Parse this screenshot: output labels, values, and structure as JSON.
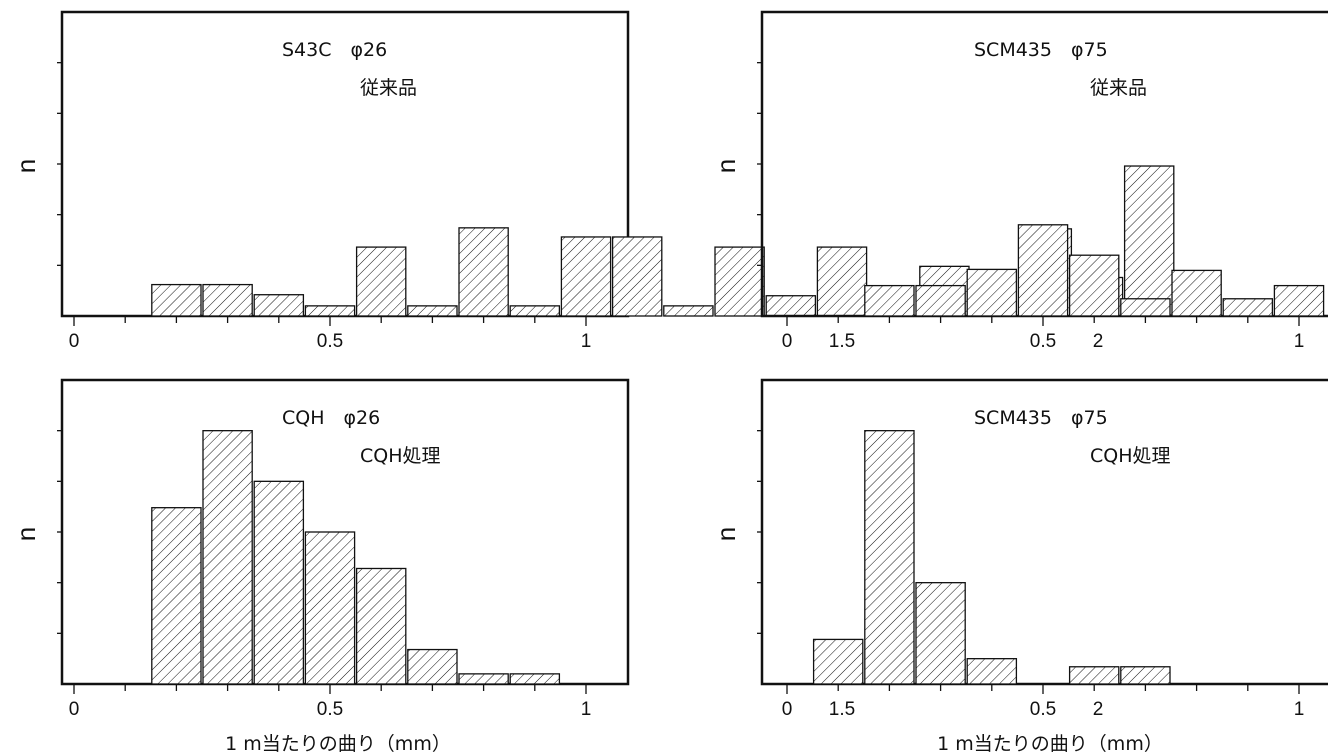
{
  "figure": {
    "colors": {
      "ink": "#111111",
      "background": "#ffffff"
    },
    "fill_pattern": "diagonal-hatch"
  },
  "chart_data": [
    {
      "type": "bar",
      "title_line1": "S43C　φ26",
      "title_line2": "従来品",
      "ylabel": "n",
      "xlabel": "",
      "xlim": [
        -0.05,
        2.15
      ],
      "ylim": [
        0,
        6
      ],
      "xticks": [
        {
          "value": 0,
          "label": "0"
        },
        {
          "value": 0.5,
          "label": "0.5"
        },
        {
          "value": 1,
          "label": "1"
        },
        {
          "value": 1.5,
          "label": "1.5"
        },
        {
          "value": 2,
          "label": "2"
        }
      ],
      "bin_width": 0.1,
      "bars": [
        {
          "x": 0.2,
          "y": 0.62
        },
        {
          "x": 0.3,
          "y": 0.62
        },
        {
          "x": 0.4,
          "y": 0.42
        },
        {
          "x": 0.5,
          "y": 0.2
        },
        {
          "x": 0.6,
          "y": 1.36
        },
        {
          "x": 0.7,
          "y": 0.2
        },
        {
          "x": 0.8,
          "y": 1.74
        },
        {
          "x": 0.9,
          "y": 0.2
        },
        {
          "x": 1.0,
          "y": 1.56
        },
        {
          "x": 1.1,
          "y": 1.56
        },
        {
          "x": 1.2,
          "y": 0.2
        },
        {
          "x": 1.3,
          "y": 1.36
        },
        {
          "x": 1.4,
          "y": 0.4
        },
        {
          "x": 1.5,
          "y": 1.36
        },
        {
          "x": 1.7,
          "y": 0.98
        },
        {
          "x": 1.9,
          "y": 1.72
        },
        {
          "x": 2.0,
          "y": 0.76
        },
        {
          "x": 2.1,
          "y": 2.96
        }
      ]
    },
    {
      "type": "bar",
      "title_line1": "SCM435　φ75",
      "title_line2": "従来品",
      "ylabel": "n",
      "xlabel": "",
      "xlim": [
        -0.05,
        2.15
      ],
      "ylim": [
        0,
        6
      ],
      "xticks": [
        {
          "value": 0,
          "label": "0"
        },
        {
          "value": 0.5,
          "label": "0.5"
        },
        {
          "value": 1,
          "label": "1"
        },
        {
          "value": 1.5,
          "label": "1.5"
        },
        {
          "value": 2,
          "label": "2"
        }
      ],
      "bin_width": 0.1,
      "bars": [
        {
          "x": 0.2,
          "y": 0.6
        },
        {
          "x": 0.3,
          "y": 0.6
        },
        {
          "x": 0.4,
          "y": 0.92
        },
        {
          "x": 0.5,
          "y": 1.8
        },
        {
          "x": 0.6,
          "y": 1.2
        },
        {
          "x": 0.7,
          "y": 0.34
        },
        {
          "x": 0.8,
          "y": 0.9
        },
        {
          "x": 0.9,
          "y": 0.34
        },
        {
          "x": 1.0,
          "y": 0.6
        },
        {
          "x": 1.3,
          "y": 0.34
        },
        {
          "x": 1.4,
          "y": 0.48
        },
        {
          "x": 1.5,
          "y": 0.34
        },
        {
          "x": 1.7,
          "y": 0.34
        }
      ]
    },
    {
      "type": "bar",
      "title_line1": "CQH　φ26",
      "title_line2": "CQH処理",
      "ylabel": "n",
      "xlabel": "1 m当たりの曲り（mm）",
      "xlim": [
        -0.05,
        2.15
      ],
      "ylim": [
        0,
        6
      ],
      "xticks": [
        {
          "value": 0,
          "label": "0"
        },
        {
          "value": 0.5,
          "label": "0.5"
        },
        {
          "value": 1,
          "label": "1"
        },
        {
          "value": 1.5,
          "label": "1.5"
        },
        {
          "value": 2,
          "label": "2"
        }
      ],
      "bin_width": 0.1,
      "bars": [
        {
          "x": 0.2,
          "y": 3.48
        },
        {
          "x": 0.3,
          "y": 5.0
        },
        {
          "x": 0.4,
          "y": 4.0
        },
        {
          "x": 0.5,
          "y": 3.0
        },
        {
          "x": 0.6,
          "y": 2.28
        },
        {
          "x": 0.7,
          "y": 0.68
        },
        {
          "x": 0.8,
          "y": 0.2
        },
        {
          "x": 0.9,
          "y": 0.2
        }
      ]
    },
    {
      "type": "bar",
      "title_line1": "SCM435　φ75",
      "title_line2": "CQH処理",
      "ylabel": "n",
      "xlabel": "1 m当たりの曲り（mm）",
      "xlim": [
        -0.05,
        2.15
      ],
      "ylim": [
        0,
        6
      ],
      "xticks": [
        {
          "value": 0,
          "label": "0"
        },
        {
          "value": 0.5,
          "label": "0.5"
        },
        {
          "value": 1,
          "label": "1"
        },
        {
          "value": 1.5,
          "label": "1.5"
        },
        {
          "value": 2,
          "label": "2"
        }
      ],
      "bin_width": 0.1,
      "bars": [
        {
          "x": 0.1,
          "y": 0.88
        },
        {
          "x": 0.2,
          "y": 5.0
        },
        {
          "x": 0.3,
          "y": 2.0
        },
        {
          "x": 0.4,
          "y": 0.5
        },
        {
          "x": 0.6,
          "y": 0.34
        },
        {
          "x": 0.7,
          "y": 0.34
        }
      ]
    }
  ]
}
